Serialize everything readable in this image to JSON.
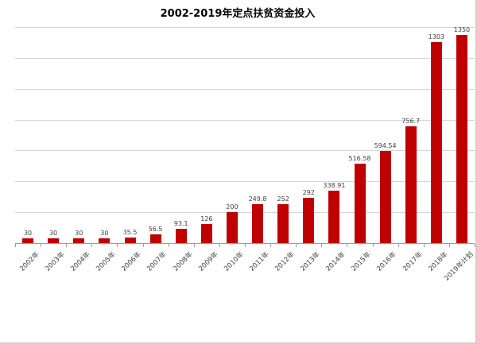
{
  "chart_data": {
    "type": "bar",
    "title": "2002-2019年定点扶贫资金投入",
    "categories": [
      "2002年",
      "2003年",
      "2004年",
      "2005年",
      "2006年",
      "2007年",
      "2008年",
      "2009年",
      "2010年",
      "2011年",
      "2012年",
      "2013年",
      "2014年",
      "2015年",
      "2016年",
      "2017年",
      "2018年",
      "2019年计划"
    ],
    "values": [
      30,
      30,
      30,
      30,
      35.5,
      56.5,
      93.1,
      126,
      200,
      249.8,
      252,
      292,
      338.91,
      516.58,
      594.54,
      756.7,
      1303,
      1350
    ],
    "value_labels": [
      "30",
      "30",
      "30",
      "30",
      "35.5",
      "56.5",
      "93.1",
      "126",
      "200",
      "249.8",
      "252",
      "292",
      "338.91",
      "516.58",
      "594.54",
      "756.7",
      "1303",
      "1350"
    ],
    "xlabel": "",
    "ylabel": "",
    "ylim": [
      0,
      1400
    ],
    "gridline_interval": 200,
    "grid": true,
    "legend": "none",
    "data_labels": true,
    "x_label_rotation_deg": 45,
    "y_axis_labels_shown": false,
    "colors": {
      "bar": "#c00000",
      "title": "#000000",
      "data_label": "#404040",
      "axis_label": "#404040",
      "gridline": "#d6d6d6",
      "axis_line": "#9d9d9d",
      "background": "#ffffff",
      "frame_border": "#cfcfcf"
    }
  }
}
